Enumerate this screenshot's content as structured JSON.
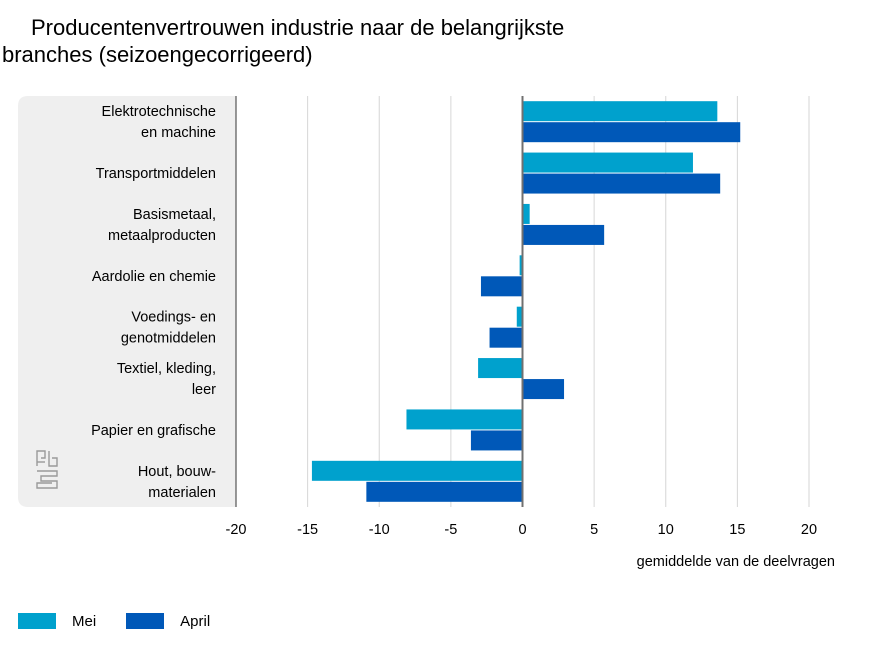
{
  "chart_data": {
    "type": "bar",
    "orientation": "horizontal",
    "title_line1": "Producentenvertrouwen industrie naar de belangrijkste",
    "title_line2": "branches (seizoengecorrigeerd)",
    "xlabel": "gemiddelde van de deelvragen",
    "xlim": [
      -20,
      20
    ],
    "xticks": [
      "-20",
      "-15",
      "-10",
      "-5",
      "0",
      "5",
      "10",
      "15",
      "20"
    ],
    "grid": true,
    "legend_position": "bottom-left",
    "categories": [
      [
        "Elektrotechnische",
        "en machine"
      ],
      [
        "Transportmiddelen"
      ],
      [
        "Basismetaal,",
        "metaalproducten"
      ],
      [
        "Aardolie en chemie"
      ],
      [
        "Voedings- en",
        "genotmiddelen"
      ],
      [
        "Textiel, kleding,",
        "leer"
      ],
      [
        "Papier en grafische"
      ],
      [
        "Hout, bouw-",
        "materialen"
      ]
    ],
    "series": [
      {
        "name": "Mei",
        "color": "#00a1cd",
        "values": [
          13.6,
          11.9,
          0.5,
          -0.2,
          -0.4,
          -3.1,
          -8.1,
          -14.7
        ]
      },
      {
        "name": "April",
        "color": "#0058b8",
        "values": [
          15.2,
          13.8,
          5.7,
          -2.9,
          -2.3,
          2.9,
          -3.6,
          -10.9
        ]
      }
    ]
  },
  "logo": {
    "name": "cbs"
  }
}
